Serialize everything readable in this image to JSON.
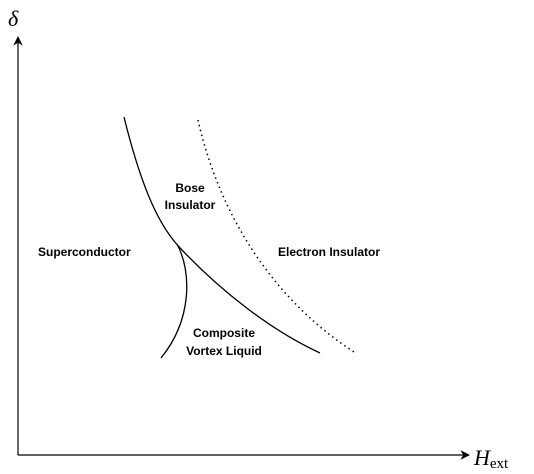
{
  "axes": {
    "y_label": "δ",
    "x_label": {
      "symbol": "H",
      "subscript": "ext"
    }
  },
  "regions": {
    "superconductor": "Superconductor",
    "bose_insulator": [
      "Bose",
      "Insulator"
    ],
    "electron_insulator": "Electron Insulator",
    "composite_vortex_liquid": [
      "Composite",
      "Vortex Liquid"
    ]
  }
}
